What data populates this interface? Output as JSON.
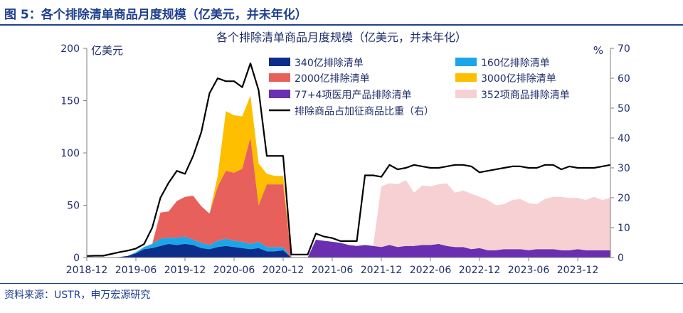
{
  "figure": {
    "title": "图 5：各个排除清单商品月度规模（亿美元，并未年化）",
    "source": "资料来源：USTR，申万宏源研究"
  },
  "chart_data": {
    "type": "area",
    "title": "各个排除清单商品月度规模（亿美元，并未年化）",
    "y_left_unit": "亿美元",
    "y_right_unit": "%",
    "ylim_left": [
      0,
      200
    ],
    "ylim_right": [
      0,
      70
    ],
    "y_left_ticks": [
      0,
      50,
      100,
      150,
      200
    ],
    "y_right_ticks": [
      0,
      10,
      20,
      30,
      40,
      50,
      60,
      70
    ],
    "x_tick_labels": [
      "2018-12",
      "2019-06",
      "2019-12",
      "2020-06",
      "2020-12",
      "2021-06",
      "2021-12",
      "2022-06",
      "2022-12",
      "2023-06",
      "2023-12"
    ],
    "x": [
      "2018-12",
      "2019-01",
      "2019-02",
      "2019-03",
      "2019-04",
      "2019-05",
      "2019-06",
      "2019-07",
      "2019-08",
      "2019-09",
      "2019-10",
      "2019-11",
      "2019-12",
      "2020-01",
      "2020-02",
      "2020-03",
      "2020-04",
      "2020-05",
      "2020-06",
      "2020-07",
      "2020-08",
      "2020-09",
      "2020-10",
      "2020-11",
      "2020-12",
      "2021-01",
      "2021-02",
      "2021-03",
      "2021-04",
      "2021-05",
      "2021-06",
      "2021-07",
      "2021-08",
      "2021-09",
      "2021-10",
      "2021-11",
      "2021-12",
      "2022-01",
      "2022-02",
      "2022-03",
      "2022-04",
      "2022-05",
      "2022-06",
      "2022-07",
      "2022-08",
      "2022-09",
      "2022-10",
      "2022-11",
      "2022-12",
      "2023-01",
      "2023-02",
      "2023-03",
      "2023-04",
      "2023-05",
      "2023-06",
      "2023-07",
      "2023-08",
      "2023-09",
      "2023-10",
      "2023-11",
      "2023-12",
      "2024-01",
      "2024-02",
      "2024-03",
      "2024-04"
    ],
    "grid": false,
    "legend_position": "top-center",
    "series": [
      {
        "name": "340亿排除清单",
        "kind": "area",
        "axis": "left",
        "color": "#0c2d8a",
        "values": [
          0,
          0,
          0,
          0,
          0.5,
          1.5,
          4,
          8,
          9,
          11,
          13,
          12,
          13,
          12,
          9,
          8,
          10,
          11,
          10,
          9,
          8,
          9,
          6,
          6,
          7,
          0,
          0,
          0,
          0,
          0,
          0,
          0,
          0,
          0,
          0,
          0,
          0,
          0,
          0,
          0,
          0,
          0,
          0,
          0,
          0,
          0,
          0,
          0,
          0,
          0,
          0,
          0,
          0,
          0,
          0,
          0,
          0,
          0,
          0,
          0,
          0,
          0,
          0,
          0,
          0
        ]
      },
      {
        "name": "160亿排除清单",
        "kind": "area",
        "axis": "left",
        "color": "#1aa6e8",
        "values": [
          0,
          0,
          0,
          0,
          0,
          0,
          1,
          2,
          4,
          7,
          6,
          7,
          7,
          5,
          5,
          4,
          6,
          7,
          6,
          6,
          5,
          6,
          4,
          4,
          3,
          0,
          0,
          0,
          0,
          0,
          0,
          0,
          0,
          0,
          0,
          0,
          0,
          0,
          0,
          0,
          0,
          0,
          0,
          0,
          0,
          0,
          0,
          0,
          0,
          0,
          0,
          0,
          0,
          0,
          0,
          0,
          0,
          0,
          0,
          0,
          0,
          0,
          0,
          0,
          0
        ]
      },
      {
        "name": "2000亿排除清单",
        "kind": "area",
        "axis": "left",
        "color": "#e8605c",
        "values": [
          0,
          0,
          0,
          0,
          0,
          0,
          0,
          0,
          0,
          25,
          25,
          35,
          38,
          42,
          35,
          30,
          52,
          65,
          65,
          70,
          102,
          35,
          60,
          60,
          60,
          0,
          0,
          0,
          0,
          0,
          0,
          0,
          0,
          0,
          0,
          0,
          0,
          0,
          0,
          0,
          0,
          0,
          0,
          0,
          0,
          0,
          0,
          0,
          0,
          0,
          0,
          0,
          0,
          0,
          0,
          0,
          0,
          0,
          0,
          0,
          0,
          0,
          0,
          0,
          0
        ]
      },
      {
        "name": "3000亿排除清单",
        "kind": "area",
        "axis": "left",
        "color": "#fdbf00",
        "values": [
          0,
          0,
          0,
          0,
          0,
          0,
          0,
          0,
          0,
          0,
          0,
          0,
          0,
          0,
          0,
          0,
          10,
          57,
          55,
          50,
          40,
          40,
          10,
          8,
          8,
          0,
          0,
          0,
          0,
          0,
          0,
          0,
          0,
          0,
          0,
          0,
          0,
          0,
          0,
          0,
          0,
          0,
          0,
          0,
          0,
          0,
          0,
          0,
          0,
          0,
          0,
          0,
          0,
          0,
          0,
          0,
          0,
          0,
          0,
          0,
          0,
          0,
          0,
          0,
          0
        ]
      },
      {
        "name": "77+4项医用产品排除清单",
        "kind": "area",
        "axis": "left",
        "color": "#6a2fb0",
        "values": [
          0,
          0,
          0,
          0,
          0,
          0,
          0,
          0,
          0,
          0,
          0,
          0,
          0,
          0,
          0,
          0,
          0,
          0,
          0,
          0,
          0,
          0,
          0,
          0,
          0,
          0,
          0,
          0,
          17,
          16,
          15,
          14,
          12,
          11,
          12,
          11,
          10,
          12,
          10,
          11,
          11,
          12,
          12,
          13,
          11,
          10,
          10,
          8,
          9,
          7,
          7,
          8,
          8,
          8,
          7,
          8,
          8,
          8,
          7,
          7,
          8,
          7,
          7,
          7,
          7
        ]
      },
      {
        "name": "352项商品排除清单",
        "kind": "area",
        "axis": "left",
        "color": "#f6d0d2",
        "values": [
          0,
          0,
          0,
          0,
          0,
          0,
          0,
          0,
          0,
          0,
          0,
          0,
          0,
          0,
          0,
          0,
          0,
          0,
          0,
          0,
          0,
          0,
          0,
          0,
          0,
          0,
          0,
          0,
          0,
          0,
          0,
          0,
          0,
          0,
          0,
          0,
          58,
          59,
          60,
          63,
          51,
          57,
          56,
          57,
          60,
          52,
          54,
          53,
          49,
          48,
          43,
          43,
          47,
          48,
          45,
          43,
          48,
          50,
          51,
          50,
          49,
          48,
          51,
          48,
          50
        ]
      },
      {
        "name": "排除商品占加征商品比重（右）",
        "kind": "line",
        "axis": "right",
        "color": "#000000",
        "values": [
          0.5,
          0.6,
          0.6,
          1.2,
          1.8,
          2.3,
          3.0,
          4.5,
          10,
          20,
          25,
          29,
          28,
          34,
          42,
          55,
          60,
          59,
          59,
          57,
          65,
          56,
          34,
          34,
          34,
          1,
          1,
          1,
          8,
          7,
          6.5,
          5.5,
          5.5,
          5.5,
          27.5,
          27.5,
          27,
          31,
          29.5,
          30,
          31,
          30.5,
          30,
          30,
          30.5,
          31,
          31,
          30.5,
          28.5,
          29,
          29.5,
          30,
          30.5,
          30.5,
          30,
          30,
          31,
          31,
          29.5,
          30.5,
          30,
          30,
          30,
          30.5,
          31
        ]
      }
    ]
  }
}
